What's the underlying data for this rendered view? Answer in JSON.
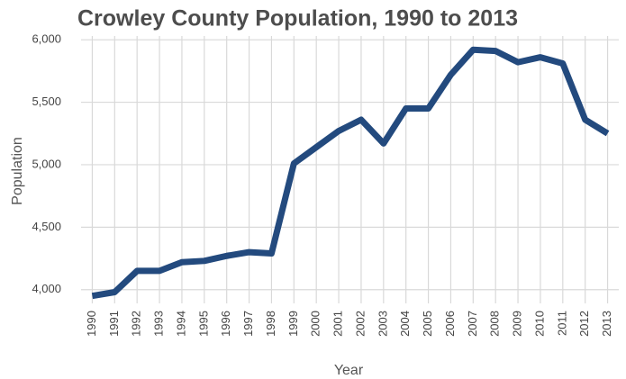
{
  "chart_data": {
    "type": "line",
    "title": "Crowley County Population, 1990 to 2013",
    "x_label": "Year",
    "y_label": "Population",
    "x": [
      1990,
      1991,
      1992,
      1993,
      1994,
      1995,
      1996,
      1997,
      1998,
      1999,
      2000,
      2001,
      2002,
      2003,
      2004,
      2005,
      2006,
      2007,
      2008,
      2009,
      2010,
      2011,
      2012,
      2013
    ],
    "series": [
      {
        "name": "Population",
        "color": "#234a7e",
        "values": [
          3950,
          3980,
          4150,
          4150,
          4220,
          4230,
          4270,
          4300,
          4290,
          5010,
          5140,
          5270,
          5360,
          5170,
          5450,
          5450,
          5720,
          5920,
          5910,
          5820,
          5860,
          5810,
          5360,
          5250
        ]
      }
    ],
    "xlim": [
      1989.5,
      2013.5
    ],
    "xticks": [
      1990,
      1991,
      1992,
      1993,
      1994,
      1995,
      1996,
      1997,
      1998,
      1999,
      2000,
      2001,
      2002,
      2003,
      2004,
      2005,
      2006,
      2007,
      2008,
      2009,
      2010,
      2011,
      2012,
      2013
    ],
    "ylim": [
      3890,
      6030
    ],
    "yticks": [
      {
        "value": 4000,
        "label": "4,000"
      },
      {
        "value": 4500,
        "label": "4,500"
      },
      {
        "value": 5000,
        "label": "5,000"
      },
      {
        "value": 5500,
        "label": "5,500"
      },
      {
        "value": 6000,
        "label": "6,000"
      }
    ],
    "grid": true
  }
}
